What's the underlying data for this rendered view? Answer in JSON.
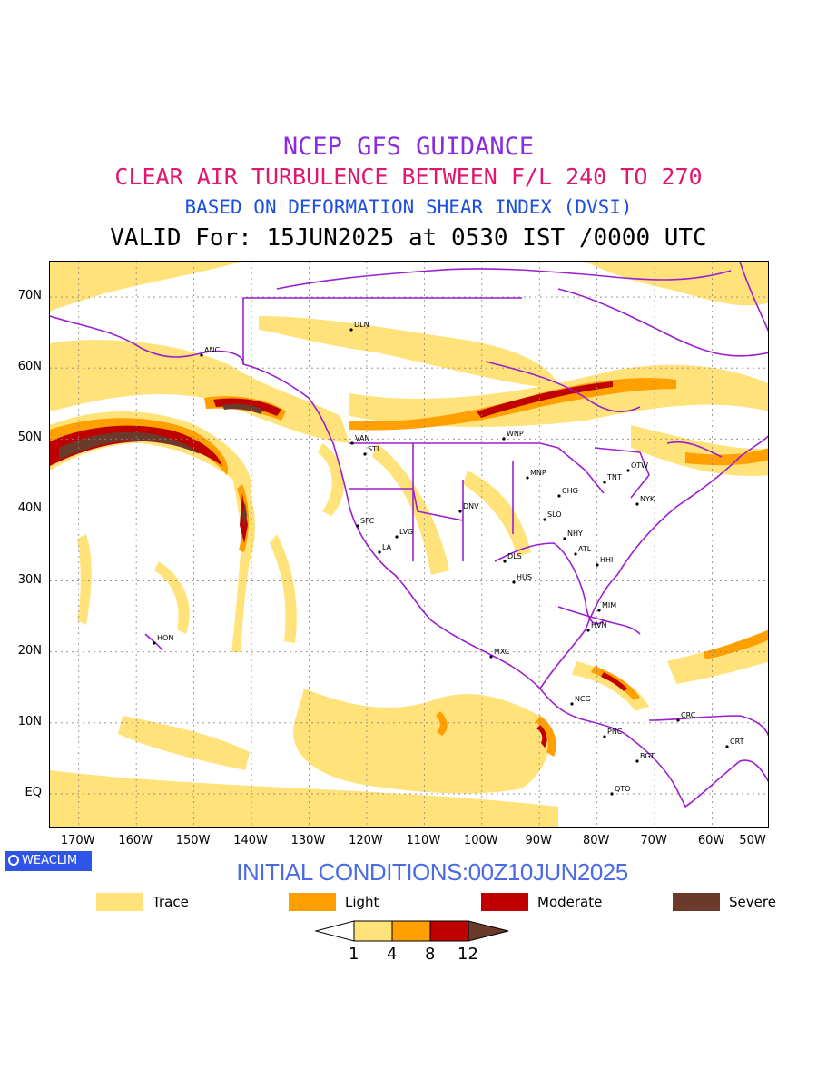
{
  "titles": {
    "line1": "NCEP GFS GUIDANCE",
    "line2": "CLEAR AIR TURBULENCE BETWEEN F/L 240 TO 270",
    "line3": "BASED ON DEFORMATION SHEAR INDEX (DVSI)",
    "line4": "VALID For: 15JUN2025 at 0530 IST /0000 UTC"
  },
  "map": {
    "lat_labels": [
      "70N",
      "60N",
      "50N",
      "40N",
      "30N",
      "20N",
      "10N",
      "EQ"
    ],
    "lon_labels": [
      "170W",
      "160W",
      "150W",
      "140W",
      "130W",
      "120W",
      "110W",
      "100W",
      "90W",
      "80W",
      "70W",
      "60W",
      "50W"
    ],
    "stations": [
      {
        "code": "ANC"
      },
      {
        "code": "DLN"
      },
      {
        "code": "VAN"
      },
      {
        "code": "STL"
      },
      {
        "code": "WNP"
      },
      {
        "code": "MNP"
      },
      {
        "code": "OTW"
      },
      {
        "code": "TNT"
      },
      {
        "code": "NYK"
      },
      {
        "code": "CHG"
      },
      {
        "code": "SFC"
      },
      {
        "code": "DNV"
      },
      {
        "code": "SLO"
      },
      {
        "code": "LVG"
      },
      {
        "code": "NHY"
      },
      {
        "code": "LA"
      },
      {
        "code": "ATL"
      },
      {
        "code": "DLS"
      },
      {
        "code": "HHI"
      },
      {
        "code": "HUS"
      },
      {
        "code": "MIM"
      },
      {
        "code": "HVN"
      },
      {
        "code": "HON"
      },
      {
        "code": "MXC"
      },
      {
        "code": "NCG"
      },
      {
        "code": "CRC"
      },
      {
        "code": "PNC"
      },
      {
        "code": "CRT"
      },
      {
        "code": "BGT"
      },
      {
        "code": "QTO"
      }
    ],
    "colors": {
      "trace": "#ffe27a",
      "light": "#ff9f00",
      "moderate": "#c00000",
      "severe": "#6b3a2a",
      "borders": "#9b1fcf",
      "grid": "#888888"
    }
  },
  "branding": {
    "badge": "WEACLIM"
  },
  "initial_conditions": "INITIAL CONDITIONS:00Z10JUN2025",
  "legend": [
    {
      "label": "Trace",
      "color": "#ffe27a"
    },
    {
      "label": "Light",
      "color": "#ff9f00"
    },
    {
      "label": "Moderate",
      "color": "#c00000"
    },
    {
      "label": "Severe",
      "color": "#6b3a2a"
    }
  ],
  "colorbar": {
    "ticks": [
      "1",
      "4",
      "8",
      "12"
    ],
    "colors": [
      "#ffffff",
      "#ffe27a",
      "#ff9f00",
      "#c00000",
      "#6b3a2a"
    ]
  }
}
